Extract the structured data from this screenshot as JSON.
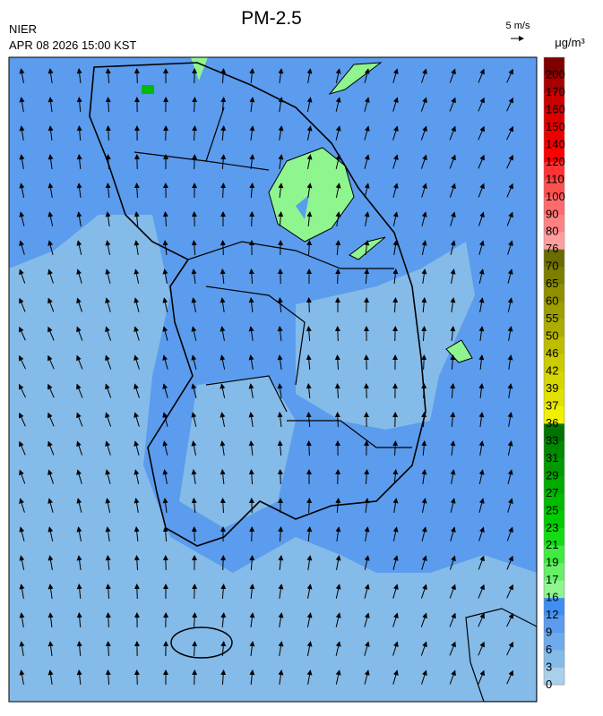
{
  "header": {
    "title": "PM-2.5",
    "agency": "NIER",
    "timestamp": "APR 08 2026 15:00 KST",
    "wind_scale": "5 m/s"
  },
  "legend": {
    "unit": "μg/m³",
    "labels": [
      0,
      3,
      6,
      9,
      12,
      16,
      17,
      19,
      21,
      23,
      25,
      27,
      29,
      31,
      33,
      36,
      37,
      39,
      42,
      46,
      50,
      55,
      60,
      65,
      70,
      76,
      80,
      90,
      100,
      110,
      120,
      140,
      150,
      160,
      170,
      200
    ],
    "colors": [
      "#a9d0ea",
      "#84bbe8",
      "#6faaec",
      "#5b9cee",
      "#3f8ff2",
      "#8ff58f",
      "#66f066",
      "#40ea40",
      "#14dc14",
      "#00cc00",
      "#00bb00",
      "#00aa00",
      "#009900",
      "#008800",
      "#007400",
      "#f0f000",
      "#e2e200",
      "#d6d600",
      "#cbcb00",
      "#bdbd00",
      "#adad00",
      "#9e9e00",
      "#8f8f00",
      "#7d7d00",
      "#6b6b00",
      "#ff9e9e",
      "#ff8282",
      "#ff6b6b",
      "#ff5050",
      "#ff3333",
      "#ff0000",
      "#ee0000",
      "#dd0000",
      "#c80000",
      "#a80000",
      "#800000"
    ]
  }
}
